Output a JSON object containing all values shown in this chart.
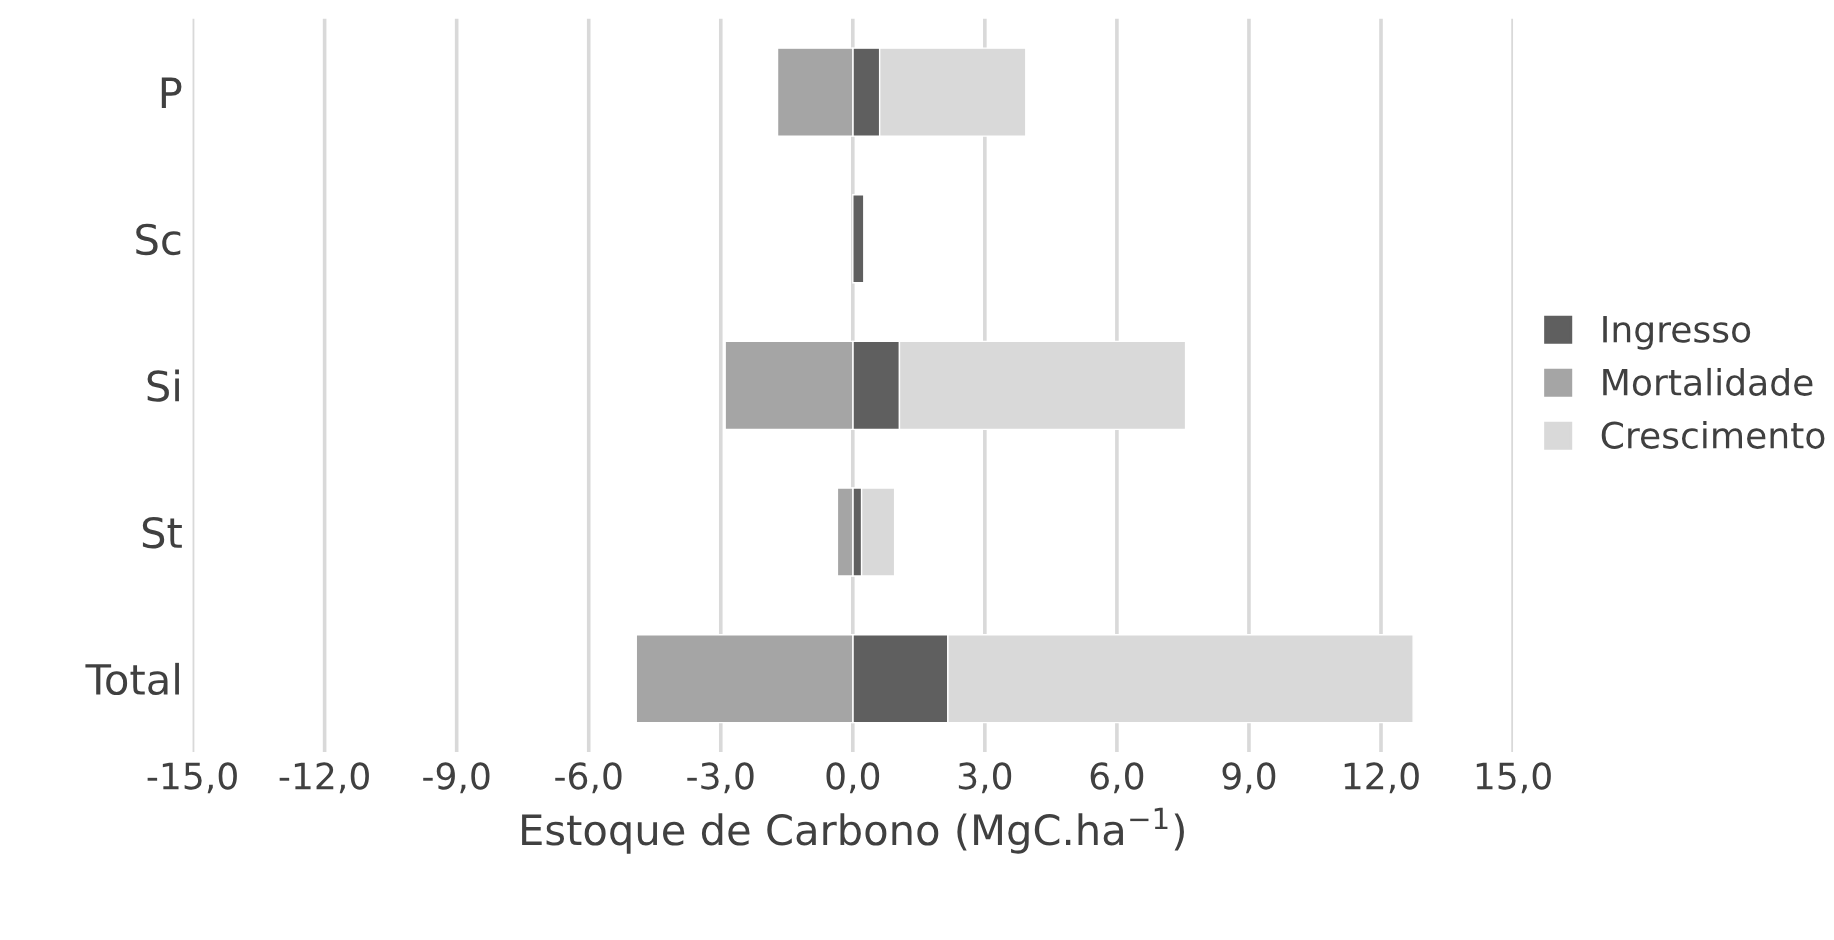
{
  "chart_data": {
    "type": "bar",
    "orientation": "horizontal",
    "stacked": true,
    "categories": [
      "P",
      "Sc",
      "Si",
      "St",
      "Total"
    ],
    "series": [
      {
        "name": "Ingresso",
        "color": "#5f5f5f",
        "values": [
          0.61,
          0.25,
          1.06,
          0.2,
          2.16
        ]
      },
      {
        "name": "Mortalidade",
        "color": "#a5a5a5",
        "values": [
          -1.71,
          null,
          -2.9,
          -0.35,
          -4.92
        ]
      },
      {
        "name": "Crescimento",
        "color": "#d9d9d9",
        "values": [
          3.32,
          null,
          6.5,
          0.75,
          10.57
        ]
      }
    ],
    "xlabel": "Estoque de Carbono (MgC.ha$^{−1}$)",
    "xlim": [
      -15,
      15
    ],
    "xticks": [
      {
        "value": -15,
        "label": "-15,0"
      },
      {
        "value": -12,
        "label": "-12,0"
      },
      {
        "value": -9,
        "label": "-9,0"
      },
      {
        "value": -6,
        "label": "-6,0"
      },
      {
        "value": -3,
        "label": "-3,0"
      },
      {
        "value": 0,
        "label": "0,0"
      },
      {
        "value": 3,
        "label": "3,0"
      },
      {
        "value": 6,
        "label": "6,0"
      },
      {
        "value": 9,
        "label": "9,0"
      },
      {
        "value": 12,
        "label": "12,0"
      },
      {
        "value": 15,
        "label": "15,0"
      }
    ],
    "grid": "x",
    "legend": "right"
  }
}
